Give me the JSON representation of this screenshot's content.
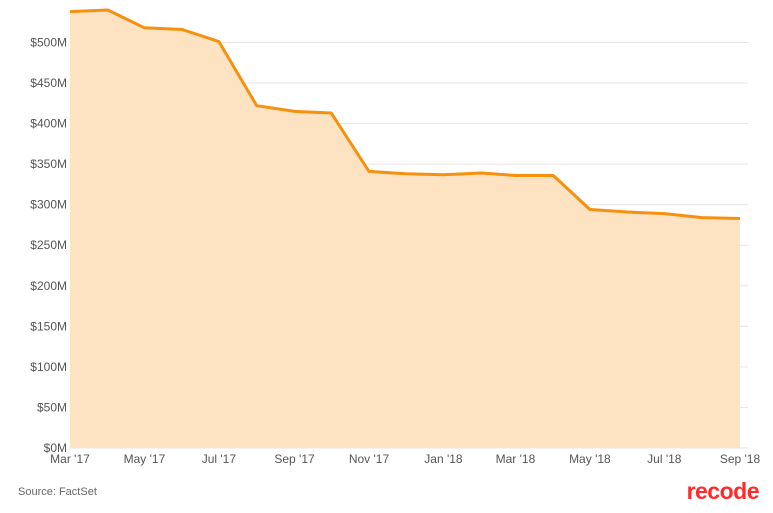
{
  "chart_data": {
    "type": "area",
    "title": "",
    "xlabel": "",
    "ylabel": "",
    "ylim": [
      0,
      540
    ],
    "yticks": [
      0,
      50,
      100,
      150,
      200,
      250,
      300,
      350,
      400,
      450,
      500
    ],
    "ytick_labels": [
      "$0M",
      "$50M",
      "$100M",
      "$150M",
      "$200M",
      "$250M",
      "$300M",
      "$350M",
      "$400M",
      "$450M",
      "$500M"
    ],
    "xticks": [
      "2017-03-01",
      "2017-05-01",
      "2017-07-01",
      "2017-09-01",
      "2017-11-01",
      "2018-01-01",
      "2018-03-01",
      "2018-05-01",
      "2018-07-01",
      "2018-09-01"
    ],
    "xtick_labels": [
      "Mar '17",
      "May '17",
      "Jul '17",
      "Sep '17",
      "Nov '17",
      "Jan '18",
      "Mar '18",
      "May '18",
      "Jul '18",
      "Sep '18"
    ],
    "x": [
      "2017-03-01",
      "2017-04-01",
      "2017-05-01",
      "2017-06-01",
      "2017-07-01",
      "2017-08-01",
      "2017-09-01",
      "2017-10-01",
      "2017-11-01",
      "2017-12-01",
      "2018-01-01",
      "2018-02-01",
      "2018-03-01",
      "2018-04-01",
      "2018-05-01",
      "2018-06-01",
      "2018-07-01",
      "2018-08-01",
      "2018-09-01"
    ],
    "series": [
      {
        "values": [
          538,
          540,
          518,
          516,
          501,
          422,
          415,
          413,
          341,
          338,
          337,
          339,
          336,
          336,
          294,
          291,
          289,
          284,
          283
        ]
      }
    ],
    "grid": true,
    "legend": "none",
    "colors": {
      "line": "#f5910f",
      "fill": "#fde3c2",
      "grid": "#e6e6e6"
    }
  },
  "footer": {
    "source": "Source: FactSet",
    "brand": "recode"
  }
}
